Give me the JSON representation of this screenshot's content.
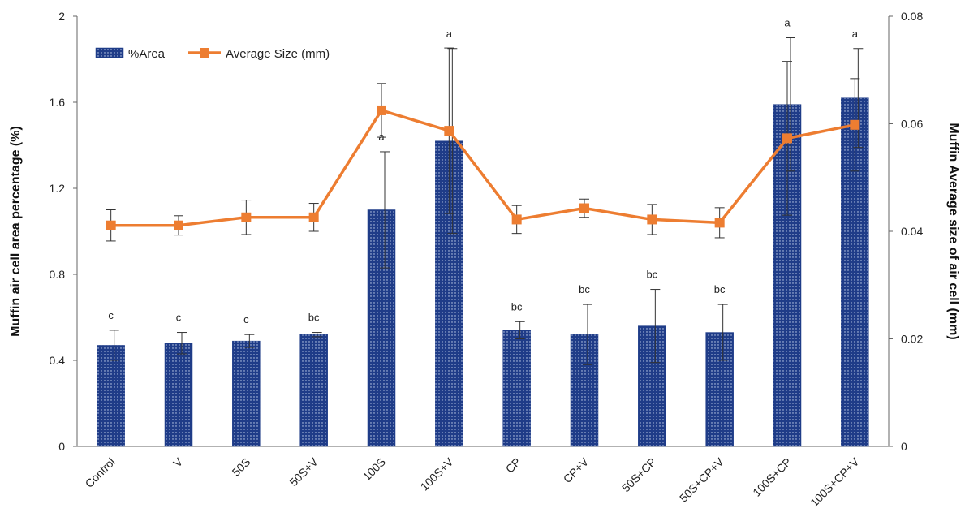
{
  "chart_data": {
    "type": "bar",
    "categories": [
      "Control",
      "V",
      "50S",
      "50S+V",
      "100S",
      "100S+V",
      "CP",
      "CP+V",
      "50S+CP",
      "50S+CP+V",
      "100S+CP",
      "100S+CP+V"
    ],
    "series": [
      {
        "name": "%Area",
        "type": "bar",
        "axis": "left",
        "color": "#1f3c88",
        "values": [
          0.47,
          0.48,
          0.49,
          0.52,
          1.1,
          1.42,
          0.54,
          0.52,
          0.56,
          0.53,
          1.59,
          1.62
        ],
        "error": [
          0.07,
          0.05,
          0.03,
          0.01,
          0.27,
          0.43,
          0.04,
          0.14,
          0.17,
          0.13,
          0.31,
          0.23
        ],
        "labels": [
          "c",
          "c",
          "c",
          "bc",
          "a",
          "a",
          "bc",
          "bc",
          "bc",
          "bc",
          "a",
          "a"
        ]
      },
      {
        "name": "Average Size (mm)",
        "type": "line",
        "axis": "right",
        "color": "#ed7d31",
        "values": [
          0.0411,
          0.0411,
          0.0426,
          0.0426,
          0.0625,
          0.0587,
          0.0422,
          0.0443,
          0.0422,
          0.0416,
          0.0573,
          0.0598
        ],
        "error": [
          0.0029,
          0.0018,
          0.0032,
          0.0026,
          0.005,
          0.0154,
          0.0026,
          0.0017,
          0.0028,
          0.0028,
          0.0143,
          0.0086
        ]
      }
    ],
    "ylabel": "Muffin air cell area percentage (%)",
    "y2label": "Muffin Average size of air cell (mm)",
    "ylim": [
      0,
      2
    ],
    "y2lim": [
      0,
      0.08
    ],
    "yticks": [
      "0",
      "0.4",
      "0.8",
      "1.2",
      "1.6",
      "2"
    ],
    "y2ticks": [
      "0",
      "0.02",
      "0.04",
      "0.06",
      "0.08"
    ],
    "legend": "top-left",
    "grid": false
  }
}
